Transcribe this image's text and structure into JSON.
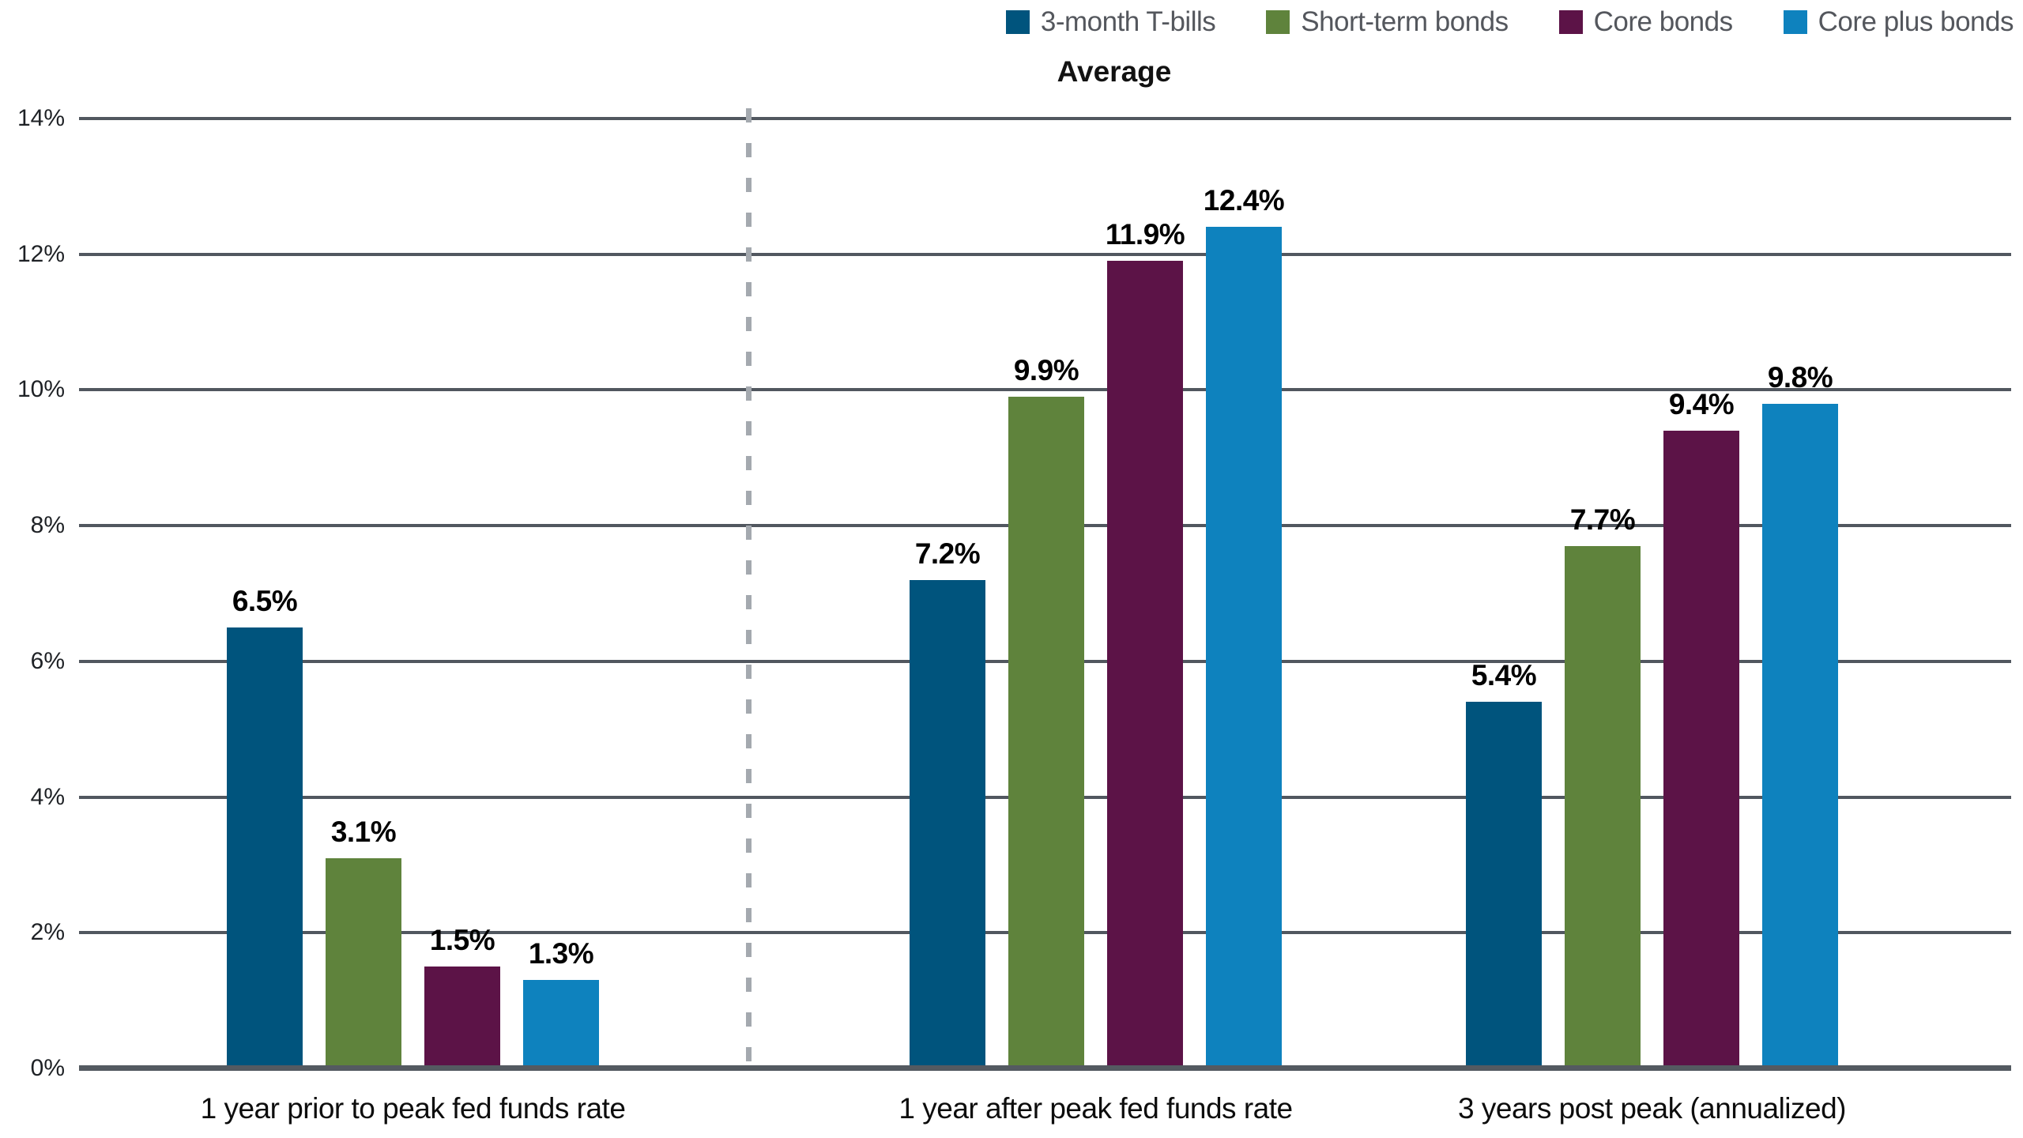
{
  "chart_data": {
    "type": "bar",
    "title": "Average",
    "categories": [
      "1 year prior to peak fed funds rate",
      "1 year after peak fed funds rate",
      "3 years post peak (annualized)"
    ],
    "series": [
      {
        "name": "3-month T-bills",
        "color": "#00547D",
        "values": [
          6.5,
          7.2,
          5.4
        ]
      },
      {
        "name": "Short-term bonds",
        "color": "#5F833C",
        "values": [
          3.1,
          9.9,
          7.7
        ]
      },
      {
        "name": "Core bonds",
        "color": "#5C1347",
        "values": [
          1.5,
          11.9,
          9.4
        ]
      },
      {
        "name": "Core plus bonds",
        "color": "#0E82BE",
        "values": [
          1.3,
          12.4,
          9.8
        ]
      }
    ],
    "value_labels": [
      [
        "6.5%",
        "3.1%",
        "1.5%",
        "1.3%"
      ],
      [
        "7.2%",
        "9.9%",
        "11.9%",
        "12.4%"
      ],
      [
        "5.4%",
        "7.7%",
        "9.4%",
        "9.8%"
      ]
    ],
    "yticks": [
      "0%",
      "2%",
      "4%",
      "6%",
      "8%",
      "10%",
      "12%",
      "14%"
    ],
    "ylim": [
      0,
      14
    ],
    "grid": true,
    "legend_position": "top-right",
    "divider": {
      "after_category": 0,
      "style": "dashed",
      "color": "#A4A9AF"
    },
    "colors": {
      "gridline": "#51575F",
      "axis": "#545A61",
      "legend_text": "#54575D",
      "value_text": "#000000"
    }
  }
}
